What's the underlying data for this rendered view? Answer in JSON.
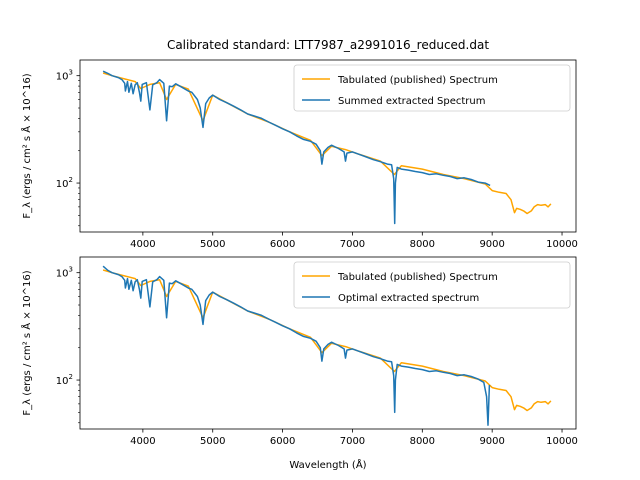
{
  "title": "Calibrated standard: LTT7987_a2991016_reduced.dat",
  "colors": {
    "tabulated": "#ffa500",
    "extracted": "#1f77b4"
  },
  "chart_data": [
    {
      "type": "line",
      "xlabel": "Wavelength (Å)",
      "ylabel": "F_λ (ergs / cm² s Å × 10^16)",
      "xlim": [
        3100,
        10200
      ],
      "ylim": [
        35,
        1400
      ],
      "yscale": "log",
      "xticks": [
        "4000",
        "5000",
        "6000",
        "7000",
        "8000",
        "9000",
        "10000"
      ],
      "yticks": [
        "10^2",
        "10^3"
      ],
      "legend_position": "upper right",
      "legend": [
        "Tabulated (published) Spectrum",
        "Summed extracted Spectrum"
      ],
      "series": [
        {
          "name": "Tabulated (published) Spectrum",
          "x": [
            3430,
            3560,
            3750,
            3890,
            3970,
            4101,
            4240,
            4340,
            4470,
            4650,
            4861,
            5000,
            5200,
            5500,
            5800,
            6100,
            6400,
            6563,
            6700,
            6900,
            7100,
            7400,
            7600,
            7700,
            8000,
            8300,
            8600,
            8900,
            9000,
            9100,
            9200,
            9270,
            9320,
            9350,
            9400,
            9450,
            9500,
            9560,
            9600,
            9650,
            9700,
            9760,
            9800,
            9840
          ],
          "y": [
            1060,
            1000,
            930,
            880,
            760,
            830,
            860,
            600,
            830,
            750,
            380,
            660,
            560,
            440,
            370,
            300,
            250,
            180,
            220,
            205,
            185,
            160,
            120,
            145,
            135,
            120,
            110,
            98,
            85,
            82,
            80,
            70,
            53,
            58,
            57,
            55,
            52,
            55,
            60,
            63,
            62,
            63,
            60,
            64
          ]
        },
        {
          "name": "Summed extracted Spectrum",
          "x": [
            3430,
            3500,
            3560,
            3650,
            3700,
            3740,
            3750,
            3780,
            3800,
            3835,
            3860,
            3889,
            3920,
            3950,
            3970,
            3990,
            4050,
            4101,
            4140,
            4200,
            4240,
            4300,
            4340,
            4380,
            4420,
            4470,
            4560,
            4650,
            4700,
            4780,
            4820,
            4861,
            4900,
            4950,
            5000,
            5100,
            5200,
            5300,
            5400,
            5500,
            5600,
            5700,
            5800,
            5900,
            6000,
            6100,
            6200,
            6300,
            6400,
            6480,
            6540,
            6563,
            6590,
            6650,
            6700,
            6800,
            6880,
            6900,
            6920,
            7000,
            7100,
            7200,
            7300,
            7400,
            7500,
            7560,
            7590,
            7605,
            7615,
            7640,
            7700,
            7800,
            7900,
            8000,
            8100,
            8200,
            8300,
            8400,
            8500,
            8600,
            8700,
            8800,
            8900,
            8970
          ],
          "y": [
            1100,
            1050,
            1000,
            960,
            920,
            850,
            720,
            880,
            700,
            850,
            680,
            820,
            860,
            700,
            580,
            830,
            860,
            480,
            820,
            860,
            920,
            850,
            380,
            800,
            790,
            840,
            780,
            720,
            700,
            600,
            500,
            330,
            550,
            620,
            660,
            600,
            560,
            520,
            480,
            440,
            420,
            400,
            370,
            345,
            320,
            300,
            275,
            255,
            245,
            230,
            200,
            150,
            195,
            215,
            225,
            210,
            195,
            160,
            190,
            195,
            185,
            175,
            165,
            158,
            150,
            148,
            110,
            42,
            100,
            140,
            135,
            132,
            128,
            125,
            120,
            122,
            118,
            115,
            110,
            112,
            108,
            102,
            100,
            95
          ]
        }
      ]
    },
    {
      "type": "line",
      "xlabel": "Wavelength (Å)",
      "ylabel": "F_λ (ergs / cm² s Å × 10^16)",
      "xlim": [
        3100,
        10200
      ],
      "ylim": [
        35,
        1400
      ],
      "yscale": "log",
      "xticks": [
        "4000",
        "5000",
        "6000",
        "7000",
        "8000",
        "9000",
        "10000"
      ],
      "yticks": [
        "10^2",
        "10^3"
      ],
      "legend_position": "upper right",
      "legend": [
        "Tabulated (published) Spectrum",
        "Optimal extracted spectrum"
      ],
      "series": [
        {
          "name": "Tabulated (published) Spectrum",
          "x": [
            3430,
            3560,
            3750,
            3890,
            3970,
            4101,
            4240,
            4340,
            4470,
            4650,
            4861,
            5000,
            5200,
            5500,
            5800,
            6100,
            6400,
            6563,
            6700,
            6900,
            7100,
            7400,
            7600,
            7700,
            8000,
            8300,
            8600,
            8900,
            9000,
            9100,
            9200,
            9270,
            9320,
            9350,
            9400,
            9450,
            9500,
            9560,
            9600,
            9650,
            9700,
            9760,
            9800,
            9840
          ],
          "y": [
            1060,
            1000,
            930,
            880,
            760,
            830,
            860,
            600,
            830,
            750,
            380,
            660,
            560,
            440,
            370,
            300,
            250,
            180,
            220,
            205,
            185,
            160,
            120,
            145,
            135,
            120,
            110,
            98,
            85,
            82,
            80,
            70,
            53,
            58,
            57,
            55,
            52,
            55,
            60,
            63,
            62,
            63,
            60,
            64
          ]
        },
        {
          "name": "Optimal extracted spectrum",
          "x": [
            3430,
            3500,
            3560,
            3650,
            3700,
            3740,
            3750,
            3780,
            3800,
            3835,
            3860,
            3889,
            3920,
            3950,
            3970,
            3990,
            4050,
            4101,
            4140,
            4200,
            4240,
            4300,
            4340,
            4380,
            4420,
            4470,
            4560,
            4650,
            4700,
            4780,
            4820,
            4861,
            4900,
            4950,
            5000,
            5100,
            5200,
            5300,
            5400,
            5500,
            5600,
            5700,
            5800,
            5900,
            6000,
            6100,
            6200,
            6300,
            6400,
            6480,
            6540,
            6563,
            6590,
            6650,
            6700,
            6800,
            6880,
            6900,
            6920,
            7000,
            7100,
            7200,
            7300,
            7400,
            7500,
            7560,
            7590,
            7605,
            7615,
            7640,
            7700,
            7800,
            7900,
            8000,
            8100,
            8200,
            8300,
            8400,
            8500,
            8600,
            8700,
            8800,
            8880,
            8920,
            8940,
            8960
          ],
          "y": [
            1150,
            1050,
            1000,
            960,
            920,
            850,
            720,
            880,
            700,
            850,
            680,
            820,
            860,
            700,
            580,
            830,
            860,
            480,
            820,
            860,
            920,
            850,
            380,
            800,
            790,
            840,
            780,
            720,
            700,
            600,
            500,
            330,
            550,
            620,
            660,
            600,
            560,
            520,
            480,
            440,
            420,
            400,
            370,
            345,
            320,
            300,
            275,
            255,
            245,
            230,
            200,
            150,
            195,
            215,
            225,
            210,
            195,
            160,
            190,
            195,
            185,
            175,
            165,
            158,
            150,
            148,
            110,
            50,
            100,
            140,
            135,
            132,
            128,
            125,
            120,
            122,
            118,
            115,
            110,
            112,
            108,
            102,
            95,
            70,
            38,
            90
          ]
        }
      ]
    }
  ]
}
